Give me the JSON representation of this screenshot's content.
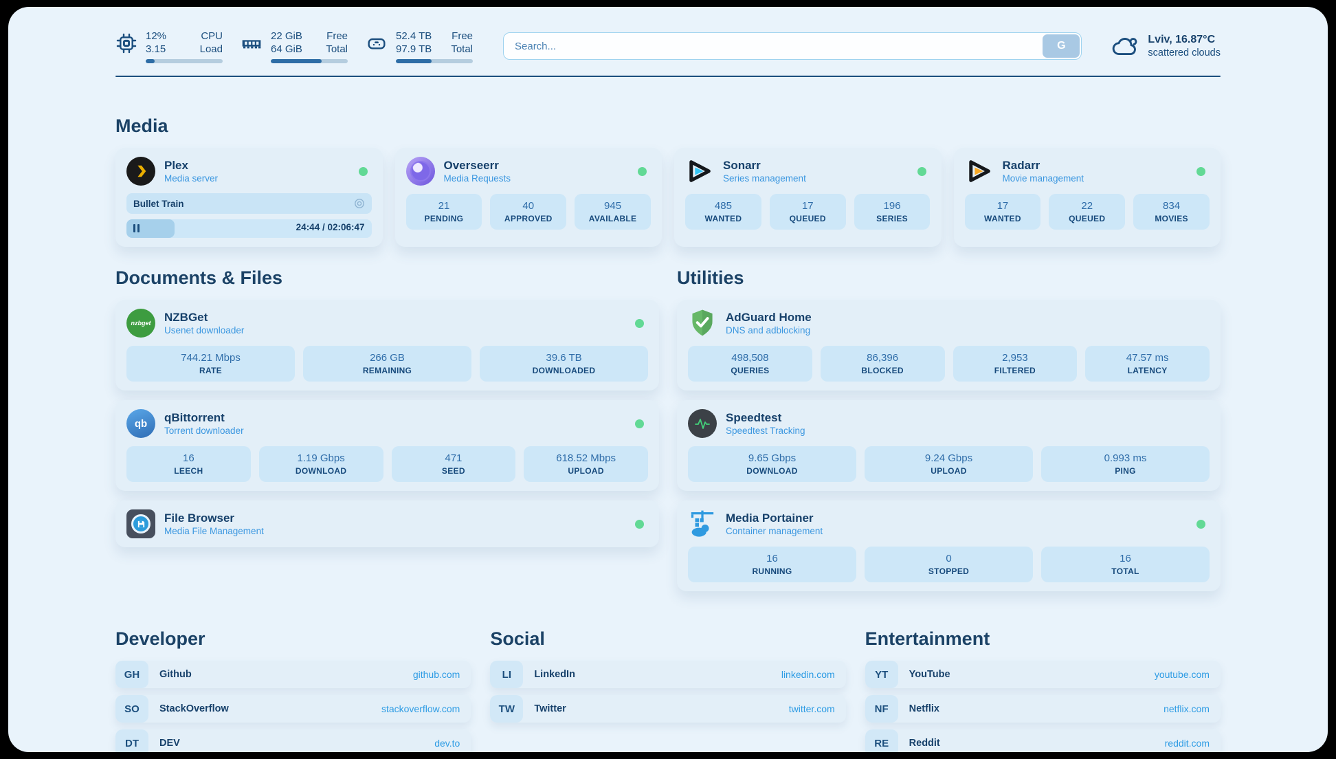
{
  "header": {
    "stats": [
      {
        "icon": "cpu-icon",
        "value_top": "12%",
        "value_bottom": "3.15",
        "label_top": "CPU",
        "label_bottom": "Load",
        "progress_pct": 12
      },
      {
        "icon": "ram-icon",
        "value_top": "22 GiB",
        "value_bottom": "64 GiB",
        "label_top": "Free",
        "label_bottom": "Total",
        "progress_pct": 66
      },
      {
        "icon": "disk-icon",
        "value_top": "52.4 TB",
        "value_bottom": "97.9 TB",
        "label_top": "Free",
        "label_bottom": "Total",
        "progress_pct": 46
      }
    ],
    "search": {
      "placeholder": "Search...",
      "button_label": "G"
    },
    "weather": {
      "location_temp": "Lviv, 16.87°C",
      "condition": "scattered clouds"
    }
  },
  "media": {
    "title": "Media",
    "plex": {
      "name": "Plex",
      "subtitle": "Media server",
      "now_playing": "Bullet Train",
      "time": "24:44 / 02:06:47",
      "progress_pct": 19.5
    },
    "overseerr": {
      "name": "Overseerr",
      "subtitle": "Media Requests",
      "stats": [
        {
          "value": "21",
          "label": "PENDING"
        },
        {
          "value": "40",
          "label": "APPROVED"
        },
        {
          "value": "945",
          "label": "AVAILABLE"
        }
      ]
    },
    "sonarr": {
      "name": "Sonarr",
      "subtitle": "Series management",
      "stats": [
        {
          "value": "485",
          "label": "WANTED"
        },
        {
          "value": "17",
          "label": "QUEUED"
        },
        {
          "value": "196",
          "label": "SERIES"
        }
      ]
    },
    "radarr": {
      "name": "Radarr",
      "subtitle": "Movie management",
      "stats": [
        {
          "value": "17",
          "label": "WANTED"
        },
        {
          "value": "22",
          "label": "QUEUED"
        },
        {
          "value": "834",
          "label": "MOVIES"
        }
      ]
    }
  },
  "documents": {
    "title": "Documents & Files",
    "nzbget": {
      "name": "NZBGet",
      "subtitle": "Usenet downloader",
      "badge": "nzbget",
      "stats": [
        {
          "value": "744.21 Mbps",
          "label": "RATE"
        },
        {
          "value": "266 GB",
          "label": "REMAINING"
        },
        {
          "value": "39.6 TB",
          "label": "DOWNLOADED"
        }
      ]
    },
    "qbittorrent": {
      "name": "qBittorrent",
      "subtitle": "Torrent downloader",
      "badge": "qb",
      "stats": [
        {
          "value": "16",
          "label": "LEECH"
        },
        {
          "value": "1.19 Gbps",
          "label": "DOWNLOAD"
        },
        {
          "value": "471",
          "label": "SEED"
        },
        {
          "value": "618.52 Mbps",
          "label": "UPLOAD"
        }
      ]
    },
    "filebrowser": {
      "name": "File Browser",
      "subtitle": "Media File Management"
    }
  },
  "utilities": {
    "title": "Utilities",
    "adguard": {
      "name": "AdGuard Home",
      "subtitle": "DNS and adblocking",
      "stats": [
        {
          "value": "498,508",
          "label": "QUERIES"
        },
        {
          "value": "86,396",
          "label": "BLOCKED"
        },
        {
          "value": "2,953",
          "label": "FILTERED"
        },
        {
          "value": "47.57 ms",
          "label": "LATENCY"
        }
      ]
    },
    "speedtest": {
      "name": "Speedtest",
      "subtitle": "Speedtest Tracking",
      "stats": [
        {
          "value": "9.65 Gbps",
          "label": "DOWNLOAD"
        },
        {
          "value": "9.24 Gbps",
          "label": "UPLOAD"
        },
        {
          "value": "0.993 ms",
          "label": "PING"
        }
      ]
    },
    "portainer": {
      "name": "Media Portainer",
      "subtitle": "Container management",
      "stats": [
        {
          "value": "16",
          "label": "RUNNING"
        },
        {
          "value": "0",
          "label": "STOPPED"
        },
        {
          "value": "16",
          "label": "TOTAL"
        }
      ]
    }
  },
  "links": {
    "developer": {
      "title": "Developer",
      "items": [
        {
          "abbr": "GH",
          "name": "Github",
          "url": "github.com"
        },
        {
          "abbr": "SO",
          "name": "StackOverflow",
          "url": "stackoverflow.com"
        },
        {
          "abbr": "DT",
          "name": "DEV",
          "url": "dev.to"
        }
      ]
    },
    "social": {
      "title": "Social",
      "items": [
        {
          "abbr": "LI",
          "name": "LinkedIn",
          "url": "linkedin.com"
        },
        {
          "abbr": "TW",
          "name": "Twitter",
          "url": "twitter.com"
        }
      ]
    },
    "entertainment": {
      "title": "Entertainment",
      "items": [
        {
          "abbr": "YT",
          "name": "YouTube",
          "url": "youtube.com"
        },
        {
          "abbr": "NF",
          "name": "Netflix",
          "url": "netflix.com"
        },
        {
          "abbr": "RE",
          "name": "Reddit",
          "url": "reddit.com"
        }
      ]
    }
  },
  "colors": {
    "accent_blue": "#2e9ce4",
    "navy": "#1b4e7e",
    "status_online": "#62d995",
    "panel_bg": "#e9f3fb",
    "card_bg": "#e3eff8",
    "stat_bg": "#cde7f8"
  }
}
